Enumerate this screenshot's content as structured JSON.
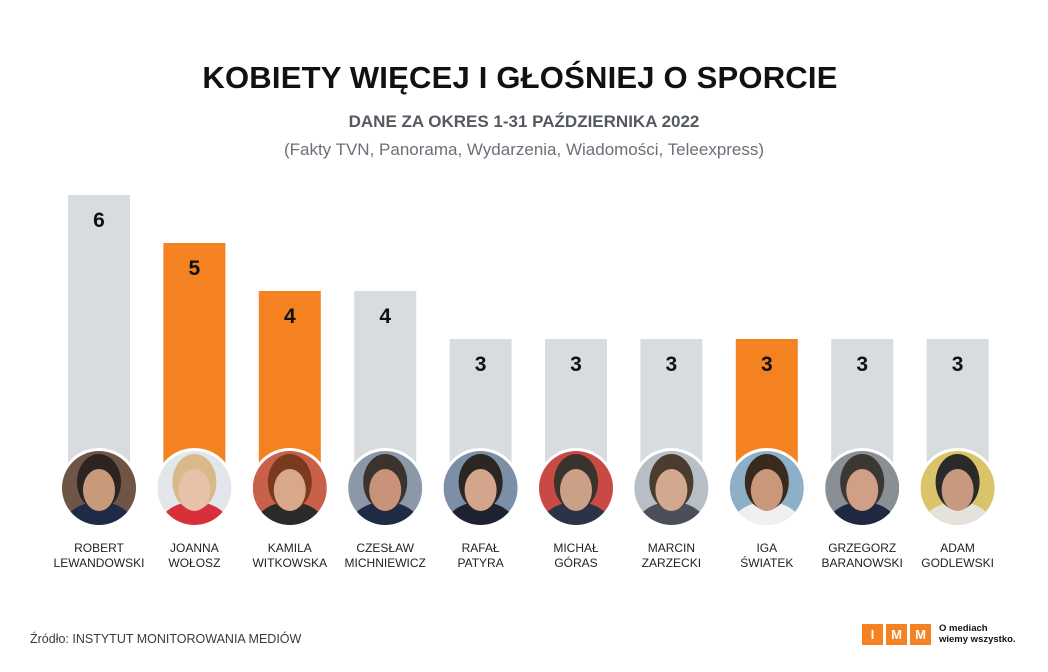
{
  "header": {
    "title": "KOBIETY WIĘCEJ I GŁOŚNIEJ O SPORCIE",
    "subtitle": "DANE ZA OKRES 1-31 PAŹDZIERNIKA 2022",
    "note": "(Fakty TVN, Panorama, Wydarzenia, Wiadomości, Teleexpress)"
  },
  "colors": {
    "highlight": "#f58220",
    "default": "#d9dcdf",
    "text": "#111111"
  },
  "chart_data": {
    "type": "bar",
    "title": "KOBIETY WIĘCEJ I GŁOŚNIEJ O SPORCIE",
    "xlabel": "",
    "ylabel": "",
    "ylim": [
      0,
      6
    ],
    "grid": false,
    "categories": [
      [
        "ROBERT",
        "LEWANDOWSKI"
      ],
      [
        "JOANNA",
        "WOŁOSZ"
      ],
      [
        "KAMILA",
        "WITKOWSKA"
      ],
      [
        "CZESŁAW",
        "MICHNIEWICZ"
      ],
      [
        "RAFAŁ",
        "PATYRA"
      ],
      [
        "MICHAŁ",
        "GÓRAS"
      ],
      [
        "MARCIN",
        "ZARZECKI"
      ],
      [
        "IGA",
        "ŚWIATEK"
      ],
      [
        "GRZEGORZ",
        "BARANOWSKI"
      ],
      [
        "ADAM",
        "GODLEWSKI"
      ]
    ],
    "values": [
      6,
      5,
      4,
      4,
      3,
      3,
      3,
      3,
      3,
      3
    ],
    "highlighted": [
      false,
      true,
      true,
      false,
      false,
      false,
      false,
      true,
      false,
      false
    ]
  },
  "footer": {
    "source": "Źródło: INSTYTUT MONITOROWANIA MEDIÓW",
    "logo_letters": [
      "I",
      "M",
      "M"
    ],
    "logo_tagline": "O mediach\nwiemy wszystko."
  }
}
